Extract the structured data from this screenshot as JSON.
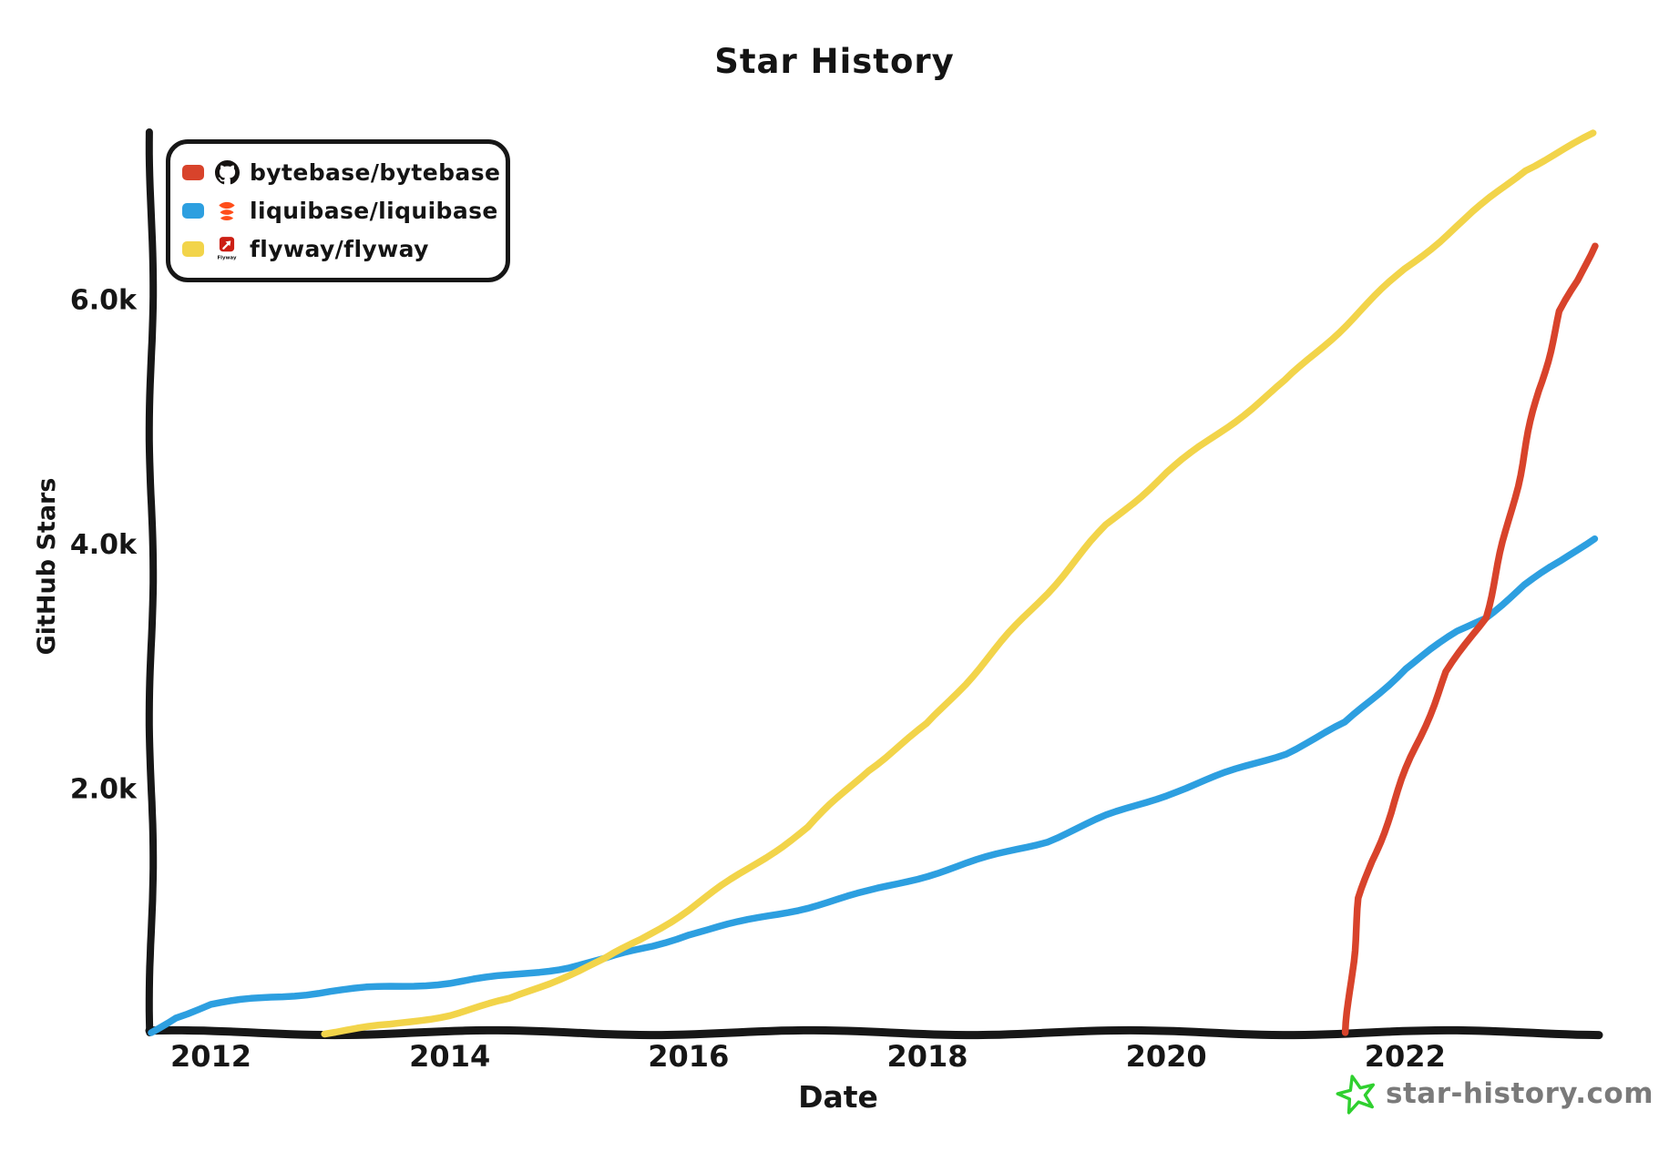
{
  "title": "Star History",
  "axes": {
    "x_label": "Date",
    "y_label": "GitHub Stars",
    "x_ticks": [
      {
        "value": 2012,
        "label": "2012"
      },
      {
        "value": 2014,
        "label": "2014"
      },
      {
        "value": 2016,
        "label": "2016"
      },
      {
        "value": 2018,
        "label": "2018"
      },
      {
        "value": 2020,
        "label": "2020"
      },
      {
        "value": 2022,
        "label": "2022"
      }
    ],
    "y_ticks": [
      {
        "value": 2000,
        "label": "2.0k"
      },
      {
        "value": 4000,
        "label": "4.0k"
      },
      {
        "value": 6000,
        "label": "6.0k"
      }
    ]
  },
  "legend": {
    "items": [
      {
        "repo": "bytebase/bytebase",
        "logo": "github-logo",
        "swatch_color": "#d8432b"
      },
      {
        "repo": "liquibase/liquibase",
        "logo": "liquibase-logo",
        "swatch_color": "#2d9fe0"
      },
      {
        "repo": "flyway/flyway",
        "logo": "flyway-logo",
        "swatch_color": "#f2d44a"
      }
    ]
  },
  "watermark": {
    "label": "star-history.com",
    "text_color": "#7a7a7a",
    "star_color": "#2fd02f"
  },
  "colors": {
    "axis": "#171717",
    "background": "#ffffff",
    "bytebase_line": "#d8432b",
    "liquibase_line": "#2d9fe0",
    "flyway_line": "#f2d44a",
    "liquibase_logo_orange": "#ff4e1a",
    "flyway_logo_red": "#cc1f14"
  },
  "chart_data": {
    "type": "line",
    "title": "Star History",
    "xlabel": "Date",
    "ylabel": "GitHub Stars",
    "xlim": [
      2011.5,
      2023.6
    ],
    "ylim": [
      0,
      7450
    ],
    "grid": false,
    "legend_position": "top-left",
    "x_unit": "year",
    "series": [
      {
        "name": "bytebase/bytebase",
        "color": "#d8432b",
        "points": [
          [
            2021.51,
            0
          ],
          [
            2021.55,
            500
          ],
          [
            2021.62,
            1100
          ],
          [
            2021.72,
            1400
          ],
          [
            2021.88,
            1800
          ],
          [
            2022.05,
            2250
          ],
          [
            2022.2,
            2600
          ],
          [
            2022.35,
            2950
          ],
          [
            2022.67,
            3400
          ],
          [
            2022.85,
            4100
          ],
          [
            2023.0,
            4750
          ],
          [
            2023.12,
            5250
          ],
          [
            2023.3,
            5900
          ],
          [
            2023.45,
            6150
          ],
          [
            2023.58,
            6440
          ]
        ]
      },
      {
        "name": "liquibase/liquibase",
        "color": "#2d9fe0",
        "points": [
          [
            2011.5,
            0
          ],
          [
            2011.7,
            130
          ],
          [
            2012.0,
            230
          ],
          [
            2012.5,
            290
          ],
          [
            2013.0,
            340
          ],
          [
            2013.5,
            375
          ],
          [
            2014.0,
            410
          ],
          [
            2014.5,
            465
          ],
          [
            2015.0,
            540
          ],
          [
            2015.3,
            600
          ],
          [
            2015.7,
            710
          ],
          [
            2016.0,
            810
          ],
          [
            2016.5,
            915
          ],
          [
            2017.0,
            1030
          ],
          [
            2017.5,
            1150
          ],
          [
            2018.0,
            1290
          ],
          [
            2018.5,
            1430
          ],
          [
            2019.0,
            1570
          ],
          [
            2019.5,
            1770
          ],
          [
            2020.0,
            1950
          ],
          [
            2020.5,
            2120
          ],
          [
            2021.0,
            2290
          ],
          [
            2021.5,
            2530
          ],
          [
            2022.0,
            2980
          ],
          [
            2022.44,
            3280
          ],
          [
            2022.67,
            3400
          ],
          [
            2023.0,
            3660
          ],
          [
            2023.3,
            3850
          ],
          [
            2023.58,
            4050
          ]
        ]
      },
      {
        "name": "flyway/flyway",
        "color": "#f2d44a",
        "points": [
          [
            2012.95,
            0
          ],
          [
            2013.5,
            60
          ],
          [
            2014.0,
            150
          ],
          [
            2014.5,
            270
          ],
          [
            2015.0,
            480
          ],
          [
            2015.3,
            600
          ],
          [
            2015.6,
            760
          ],
          [
            2016.0,
            1010
          ],
          [
            2016.5,
            1340
          ],
          [
            2017.0,
            1680
          ],
          [
            2017.5,
            2150
          ],
          [
            2018.0,
            2520
          ],
          [
            2018.5,
            3060
          ],
          [
            2019.0,
            3600
          ],
          [
            2019.5,
            4150
          ],
          [
            2020.0,
            4580
          ],
          [
            2020.5,
            4950
          ],
          [
            2021.0,
            5330
          ],
          [
            2021.5,
            5790
          ],
          [
            2022.0,
            6250
          ],
          [
            2022.5,
            6650
          ],
          [
            2023.0,
            7060
          ],
          [
            2023.58,
            7350
          ]
        ]
      }
    ]
  }
}
